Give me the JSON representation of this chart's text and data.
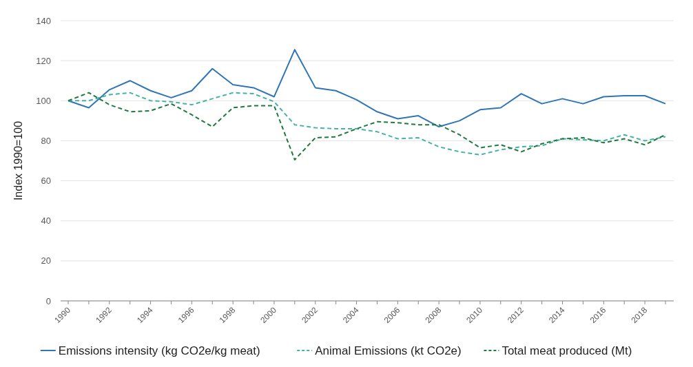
{
  "chart_data": {
    "type": "line",
    "ylabel": "Index 1990=100",
    "categories": [
      "1990",
      null,
      "1992",
      null,
      "1994",
      null,
      "1996",
      null,
      "1998",
      null,
      "2000",
      null,
      "2002",
      null,
      "2004",
      null,
      "2006",
      null,
      "2008",
      null,
      "2010",
      null,
      "2012",
      null,
      "2014",
      null,
      "2016",
      null,
      "2018",
      null
    ],
    "ylim": [
      0,
      140
    ],
    "yticks": [
      0,
      20,
      40,
      60,
      80,
      100,
      120,
      140
    ],
    "grid": "y",
    "legend": "bottom",
    "marker": "none",
    "series": [
      {
        "name": "Emissions intensity (kg CO2e/kg meat)",
        "color": "#2e75b6",
        "line_style": "solid",
        "values": [
          100,
          96.5,
          105.5,
          110,
          105,
          101.5,
          105,
          116,
          108,
          106.5,
          102,
          125.5,
          106.5,
          105,
          100.5,
          94.5,
          91,
          92.5,
          87,
          90,
          95.5,
          96.5,
          103.5,
          98.5,
          101,
          98.5,
          102,
          102.5,
          102.5,
          98.5
        ]
      },
      {
        "name": "Animal Emissions (kt CO2e)",
        "color": "#45b3a3",
        "line_style": "dashed",
        "values": [
          100,
          100,
          103,
          104,
          100,
          99.5,
          98,
          101,
          104,
          103.5,
          99.5,
          88,
          86.5,
          86,
          86,
          84.5,
          81,
          81.5,
          77,
          74.5,
          73,
          75.5,
          77,
          77.5,
          81,
          80.5,
          80,
          83,
          80,
          82
        ]
      },
      {
        "name": "Total meat produced (Mt)",
        "color": "#1e7a3c",
        "line_style": "dashed",
        "values": [
          100,
          104,
          98,
          94.5,
          95,
          98.5,
          93,
          87,
          96.5,
          97.5,
          97.5,
          70.5,
          81.5,
          82,
          86,
          89.5,
          89,
          88,
          88,
          83,
          76.5,
          78,
          74.5,
          78.5,
          81,
          81.5,
          79,
          81,
          78,
          83
        ]
      }
    ]
  }
}
